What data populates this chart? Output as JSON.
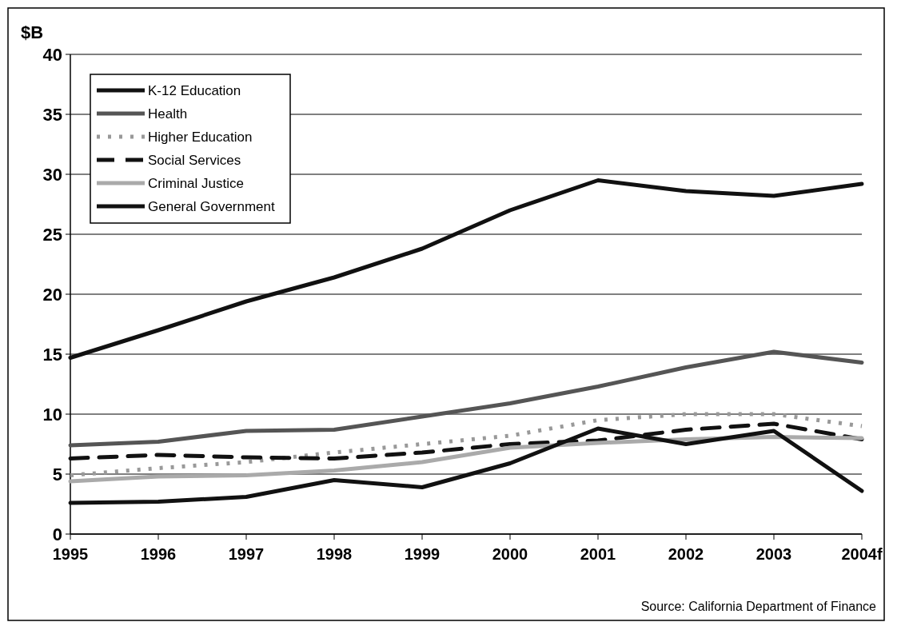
{
  "chart_data": {
    "type": "line",
    "ylabel": "$B",
    "categories": [
      "1995",
      "1996",
      "1997",
      "1998",
      "1999",
      "2000",
      "2001",
      "2002",
      "2003",
      "2004f"
    ],
    "ylim": [
      0,
      40
    ],
    "yticks": [
      0,
      5,
      10,
      15,
      20,
      25,
      30,
      35,
      40
    ],
    "grid": "y",
    "legend": "top left",
    "marker": "none",
    "annotations": [
      "Source: California Department of Finance"
    ],
    "series": [
      {
        "name": "K-12 Education",
        "color": "#111111",
        "line_style": "solid",
        "values": [
          14.7,
          17.0,
          19.4,
          21.4,
          23.8,
          27.0,
          29.5,
          28.6,
          28.2,
          29.2
        ]
      },
      {
        "name": "Health",
        "color": "#555555",
        "line_style": "solid",
        "values": [
          7.4,
          7.7,
          8.6,
          8.7,
          9.8,
          10.9,
          12.3,
          13.9,
          15.2,
          14.3
        ]
      },
      {
        "name": "Higher Education",
        "color": "#999999",
        "line_style": "dotted",
        "values": [
          4.9,
          5.5,
          6.0,
          6.8,
          7.5,
          8.2,
          9.5,
          10.0,
          10.0,
          9.0
        ]
      },
      {
        "name": "Social Services",
        "color": "#111111",
        "line_style": "dashed",
        "values": [
          6.3,
          6.6,
          6.4,
          6.3,
          6.8,
          7.5,
          7.8,
          8.7,
          9.2,
          7.9
        ]
      },
      {
        "name": "Criminal Justice",
        "color": "#aaaaaa",
        "line_style": "solid",
        "values": [
          4.4,
          4.8,
          4.9,
          5.3,
          6.0,
          7.2,
          7.6,
          7.9,
          8.1,
          8.0
        ]
      },
      {
        "name": "General Government",
        "color": "#111111",
        "line_style": "solid",
        "values": [
          2.6,
          2.7,
          3.1,
          4.5,
          3.9,
          5.9,
          8.8,
          7.5,
          8.6,
          3.6
        ]
      }
    ]
  }
}
